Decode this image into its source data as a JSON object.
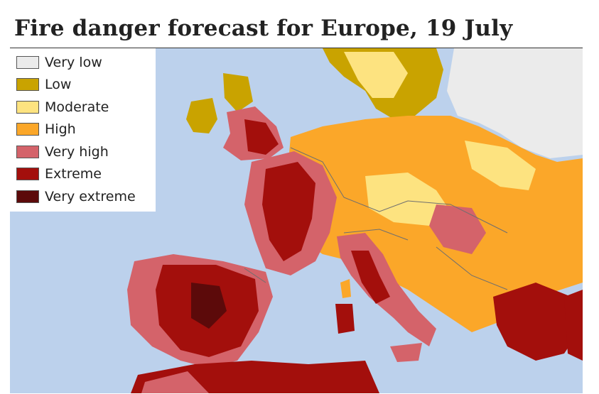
{
  "title": "Fire danger forecast for Europe, 19 July",
  "legend": [
    {
      "label": "Very low",
      "color": "#ebebeb"
    },
    {
      "label": "Low",
      "color": "#c9a300"
    },
    {
      "label": "Moderate",
      "color": "#fde380"
    },
    {
      "label": "High",
      "color": "#fba729"
    },
    {
      "label": "Very high",
      "color": "#d4636a"
    },
    {
      "label": "Extreme",
      "color": "#a30f0c"
    },
    {
      "label": "Very extreme",
      "color": "#5c0a0a"
    }
  ],
  "colors": {
    "sea": "#bcd1ec",
    "border": "#6f6f6f"
  }
}
